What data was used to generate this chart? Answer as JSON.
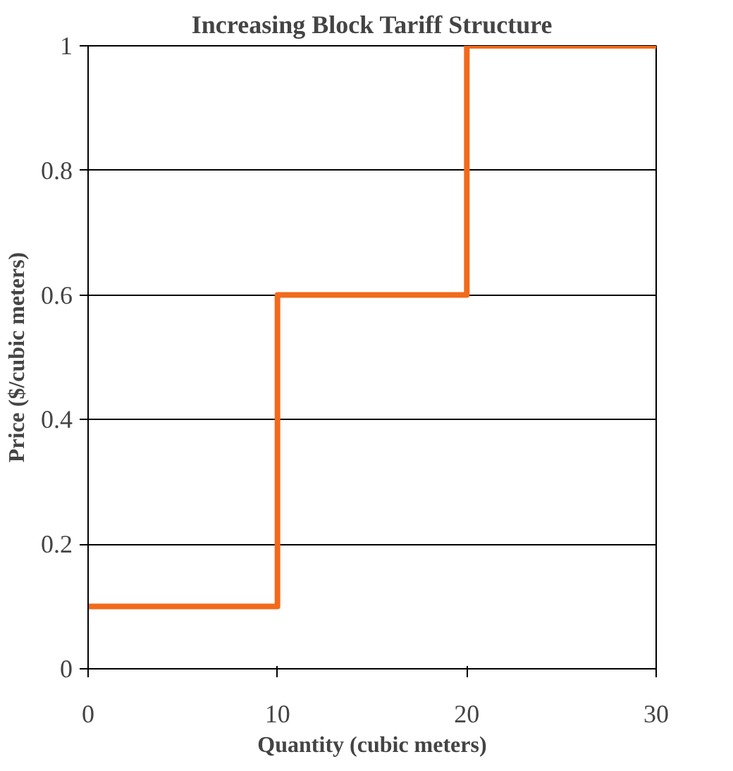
{
  "chart_data": {
    "type": "step",
    "title": "Increasing Block Tariff Structure",
    "xlabel": "Quantity (cubic meters)",
    "ylabel": "Price ($/cubic meters)",
    "x": [
      0,
      10,
      20,
      30
    ],
    "series": [
      {
        "color": "#f26a1b",
        "values": [
          0.1,
          0.6,
          1,
          1
        ]
      }
    ],
    "xlim": [
      0,
      30
    ],
    "ylim": [
      0,
      1
    ],
    "xticks": [
      0,
      10,
      20,
      30
    ],
    "yticks": [
      0,
      0.2,
      0.4,
      0.6,
      0.8,
      1
    ],
    "grid": "y"
  }
}
